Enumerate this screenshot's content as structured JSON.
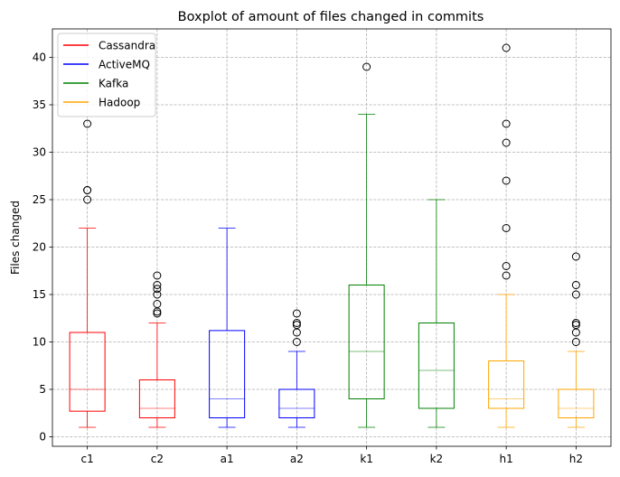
{
  "chart_data": {
    "type": "boxplot",
    "title": "Boxplot of amount of files changed in commits",
    "xlabel": "",
    "ylabel": "Files changed",
    "ylim": [
      -1,
      43
    ],
    "yticks": [
      0,
      5,
      10,
      15,
      20,
      25,
      30,
      35,
      40
    ],
    "grid": true,
    "legend_position": "top-left",
    "categories": [
      "c1",
      "c2",
      "a1",
      "a2",
      "k1",
      "k2",
      "h1",
      "h2"
    ],
    "legend": [
      {
        "name": "Cassandra",
        "color": "#ff0000"
      },
      {
        "name": "ActiveMQ",
        "color": "#0000ff"
      },
      {
        "name": "Kafka",
        "color": "#008000"
      },
      {
        "name": "Hadoop",
        "color": "#ffa500"
      }
    ],
    "boxes": [
      {
        "label": "c1",
        "color": "#ff0000",
        "whislo": 1,
        "q1": 2.7,
        "med": 5,
        "q3": 11,
        "whishi": 22,
        "fliers": [
          25,
          26,
          26,
          33
        ]
      },
      {
        "label": "c2",
        "color": "#ff0000",
        "whislo": 1,
        "q1": 2,
        "med": 3,
        "q3": 6,
        "whishi": 12,
        "fliers": [
          13,
          13.2,
          14,
          15,
          15.6,
          16,
          17
        ]
      },
      {
        "label": "a1",
        "color": "#0000ff",
        "whislo": 1,
        "q1": 2,
        "med": 4,
        "q3": 11.2,
        "whishi": 22,
        "fliers": []
      },
      {
        "label": "a2",
        "color": "#0000ff",
        "whislo": 1,
        "q1": 2,
        "med": 3,
        "q3": 5,
        "whishi": 9,
        "fliers": [
          10,
          11,
          11.8,
          12,
          13
        ]
      },
      {
        "label": "k1",
        "color": "#008000",
        "whislo": 1,
        "q1": 4,
        "med": 9,
        "q3": 16,
        "whishi": 34,
        "fliers": [
          39
        ]
      },
      {
        "label": "k2",
        "color": "#008000",
        "whislo": 1,
        "q1": 3,
        "med": 7,
        "q3": 12,
        "whishi": 25,
        "fliers": []
      },
      {
        "label": "h1",
        "color": "#ffa500",
        "whislo": 1,
        "q1": 3,
        "med": 4,
        "q3": 8,
        "whishi": 15,
        "fliers": [
          17,
          18,
          22,
          27,
          31,
          33,
          41
        ]
      },
      {
        "label": "h2",
        "color": "#ffa500",
        "whislo": 1,
        "q1": 2,
        "med": 3,
        "q3": 5,
        "whishi": 9,
        "fliers": [
          10,
          11,
          11.8,
          12,
          15,
          16,
          19
        ]
      }
    ]
  }
}
